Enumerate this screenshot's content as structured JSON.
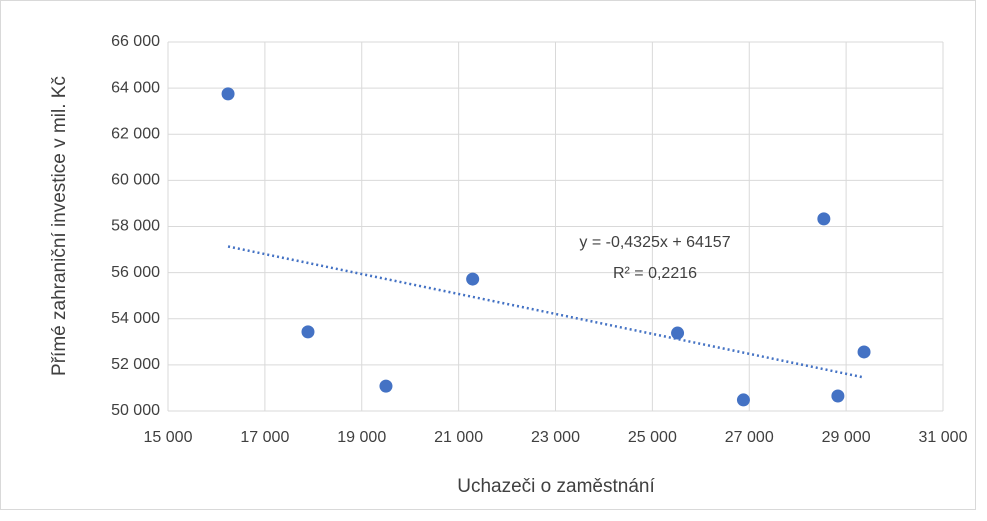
{
  "chart_data": {
    "type": "scatter",
    "x_label": "Uchazeči o zaměstnání",
    "y_label": "Přímé zahraniční investice v mil. Kč",
    "series": [
      {
        "name": "Přímé zahraniční investice",
        "color": "#4472c4",
        "x": [
          16240,
          17890,
          19500,
          21290,
          25520,
          26880,
          28830,
          28540,
          29370
        ],
        "values": [
          63750,
          53430,
          51080,
          55720,
          53380,
          50480,
          50650,
          58330,
          52560
        ]
      }
    ],
    "trendline": {
      "color": "#4472c4",
      "x": [
        16240,
        29370
      ],
      "values": [
        57133,
        51454
      ]
    },
    "annotations": [
      "y = -0,4325x + 64157",
      "R² = 0,2216"
    ],
    "xlim": [
      15000,
      31000
    ],
    "xticks": [
      {
        "value": 15000,
        "label": "15 000"
      },
      {
        "value": 17000,
        "label": "17 000"
      },
      {
        "value": 19000,
        "label": "19 000"
      },
      {
        "value": 21000,
        "label": "21 000"
      },
      {
        "value": 23000,
        "label": "23 000"
      },
      {
        "value": 25000,
        "label": "25 000"
      },
      {
        "value": 27000,
        "label": "27 000"
      },
      {
        "value": 29000,
        "label": "29 000"
      },
      {
        "value": 31000,
        "label": "31 000"
      }
    ],
    "ylim": [
      50000,
      66000
    ],
    "yticks": [
      {
        "value": 50000,
        "label": "50 000"
      },
      {
        "value": 52000,
        "label": "52 000"
      },
      {
        "value": 54000,
        "label": "54 000"
      },
      {
        "value": 56000,
        "label": "56 000"
      },
      {
        "value": 58000,
        "label": "58 000"
      },
      {
        "value": 60000,
        "label": "60 000"
      },
      {
        "value": 62000,
        "label": "62 000"
      },
      {
        "value": 64000,
        "label": "64 000"
      },
      {
        "value": 66000,
        "label": "66 000"
      }
    ],
    "grid": true
  }
}
